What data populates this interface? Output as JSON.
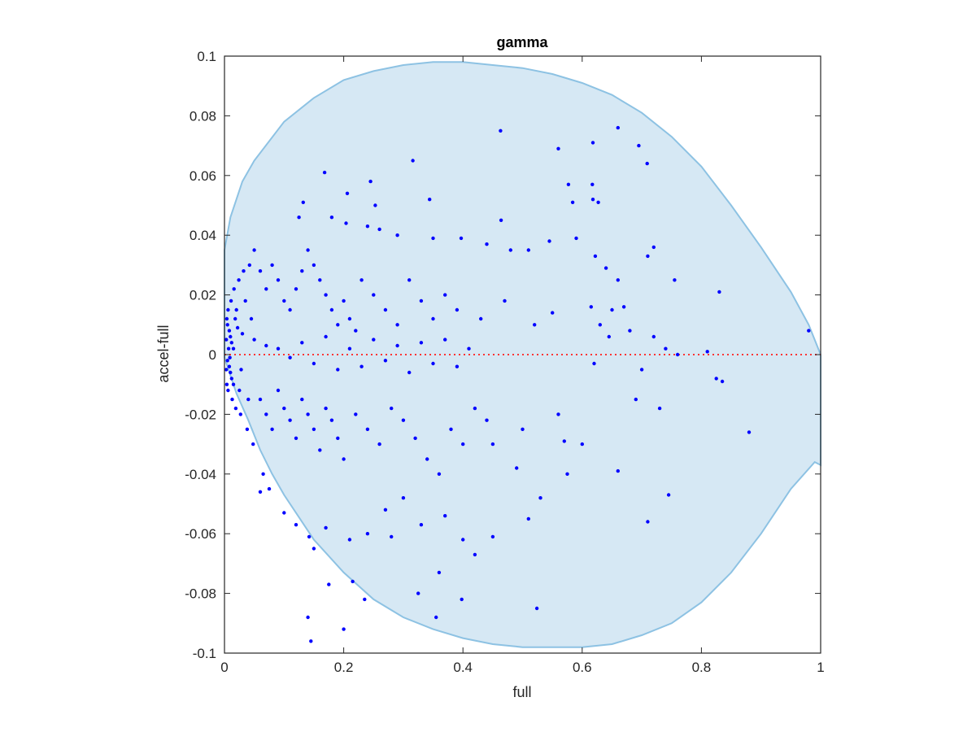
{
  "chart_data": {
    "type": "scatter",
    "title": "gamma",
    "xlabel": "full",
    "ylabel": "accel-full",
    "xlim": [
      0,
      1
    ],
    "ylim": [
      -0.1,
      0.1
    ],
    "grid": false,
    "xticks": [
      0,
      0.2,
      0.4,
      0.6,
      0.8,
      1
    ],
    "xtick_labels": [
      "0",
      "0.2",
      "0.4",
      "0.6",
      "0.8",
      "1"
    ],
    "yticks": [
      -0.1,
      -0.08,
      -0.06,
      -0.04,
      -0.02,
      0,
      0.02,
      0.04,
      0.06,
      0.08,
      0.1
    ],
    "ytick_labels": [
      "-0.1",
      "-0.08",
      "-0.06",
      "-0.04",
      "-0.02",
      "0",
      "0.02",
      "0.04",
      "0.06",
      "0.08",
      "0.1"
    ],
    "colors": {
      "points": "#0000ff",
      "reference_line": "#ff3333",
      "region_fill": "#d6e8f4",
      "region_edge": "#8dc2e3",
      "axes": "#262626"
    },
    "reference_line": {
      "y": 0,
      "style": "dotted"
    },
    "region": {
      "upper": [
        [
          0,
          0.035
        ],
        [
          0.01,
          0.046
        ],
        [
          0.03,
          0.058
        ],
        [
          0.05,
          0.065
        ],
        [
          0.1,
          0.078
        ],
        [
          0.15,
          0.086
        ],
        [
          0.2,
          0.092
        ],
        [
          0.25,
          0.095
        ],
        [
          0.3,
          0.097
        ],
        [
          0.35,
          0.098
        ],
        [
          0.4,
          0.098
        ],
        [
          0.45,
          0.097
        ],
        [
          0.5,
          0.096
        ],
        [
          0.55,
          0.094
        ],
        [
          0.6,
          0.091
        ],
        [
          0.65,
          0.087
        ],
        [
          0.7,
          0.081
        ],
        [
          0.75,
          0.073
        ],
        [
          0.8,
          0.063
        ],
        [
          0.85,
          0.05
        ],
        [
          0.9,
          0.036
        ],
        [
          0.95,
          0.021
        ],
        [
          0.98,
          0.01
        ],
        [
          1,
          0
        ]
      ],
      "lower": [
        [
          0,
          -0.001
        ],
        [
          0.02,
          -0.013
        ],
        [
          0.04,
          -0.022
        ],
        [
          0.06,
          -0.032
        ],
        [
          0.08,
          -0.04
        ],
        [
          0.1,
          -0.047
        ],
        [
          0.15,
          -0.062
        ],
        [
          0.2,
          -0.073
        ],
        [
          0.25,
          -0.082
        ],
        [
          0.3,
          -0.088
        ],
        [
          0.35,
          -0.092
        ],
        [
          0.4,
          -0.095
        ],
        [
          0.45,
          -0.097
        ],
        [
          0.5,
          -0.098
        ],
        [
          0.55,
          -0.098
        ],
        [
          0.6,
          -0.098
        ],
        [
          0.65,
          -0.097
        ],
        [
          0.7,
          -0.094
        ],
        [
          0.75,
          -0.09
        ],
        [
          0.8,
          -0.083
        ],
        [
          0.85,
          -0.073
        ],
        [
          0.9,
          -0.06
        ],
        [
          0.95,
          -0.045
        ],
        [
          0.99,
          -0.036
        ],
        [
          1,
          -0.037
        ]
      ]
    },
    "series": [
      {
        "points": [
          [
            0.463,
            0.075
          ],
          [
            0.66,
            0.076
          ],
          [
            0.618,
            0.071
          ],
          [
            0.695,
            0.07
          ],
          [
            0.709,
            0.064
          ],
          [
            0.56,
            0.069
          ],
          [
            0.316,
            0.065
          ],
          [
            0.168,
            0.061
          ],
          [
            0.245,
            0.058
          ],
          [
            0.577,
            0.057
          ],
          [
            0.617,
            0.057
          ],
          [
            0.618,
            0.052
          ],
          [
            0.627,
            0.051
          ],
          [
            0.253,
            0.05
          ],
          [
            0.344,
            0.052
          ],
          [
            0.584,
            0.051
          ],
          [
            0.464,
            0.045
          ],
          [
            0.206,
            0.054
          ],
          [
            0.132,
            0.051
          ],
          [
            0.125,
            0.046
          ],
          [
            0.18,
            0.046
          ],
          [
            0.204,
            0.044
          ],
          [
            0.24,
            0.043
          ],
          [
            0.26,
            0.042
          ],
          [
            0.29,
            0.04
          ],
          [
            0.35,
            0.039
          ],
          [
            0.397,
            0.039
          ],
          [
            0.44,
            0.037
          ],
          [
            0.48,
            0.035
          ],
          [
            0.51,
            0.035
          ],
          [
            0.545,
            0.038
          ],
          [
            0.59,
            0.039
          ],
          [
            0.622,
            0.033
          ],
          [
            0.64,
            0.029
          ],
          [
            0.66,
            0.025
          ],
          [
            0.71,
            0.033
          ],
          [
            0.72,
            0.036
          ],
          [
            0.755,
            0.025
          ],
          [
            0.83,
            0.021
          ],
          [
            0.98,
            0.008
          ],
          [
            0.81,
            0.001
          ],
          [
            0.76,
            0
          ],
          [
            0.825,
            -0.008
          ],
          [
            0.835,
            -0.009
          ],
          [
            0.73,
            -0.018
          ],
          [
            0.88,
            -0.026
          ],
          [
            0.66,
            -0.039
          ],
          [
            0.745,
            -0.047
          ],
          [
            0.71,
            -0.056
          ],
          [
            0.524,
            -0.085
          ],
          [
            0.398,
            -0.082
          ],
          [
            0.355,
            -0.088
          ],
          [
            0.235,
            -0.082
          ],
          [
            0.2,
            -0.092
          ],
          [
            0.145,
            -0.096
          ],
          [
            0.14,
            -0.088
          ],
          [
            0.175,
            -0.077
          ],
          [
            0.215,
            -0.076
          ],
          [
            0.15,
            -0.065
          ],
          [
            0.142,
            -0.061
          ],
          [
            0.36,
            -0.073
          ],
          [
            0.325,
            -0.08
          ],
          [
            0.42,
            -0.067
          ],
          [
            0.45,
            -0.061
          ],
          [
            0.51,
            -0.055
          ],
          [
            0.4,
            -0.062
          ],
          [
            0.37,
            -0.054
          ],
          [
            0.33,
            -0.057
          ],
          [
            0.28,
            -0.061
          ],
          [
            0.27,
            -0.052
          ],
          [
            0.3,
            -0.048
          ],
          [
            0.24,
            -0.06
          ],
          [
            0.21,
            -0.062
          ],
          [
            0.17,
            -0.058
          ],
          [
            0.12,
            -0.057
          ],
          [
            0.1,
            -0.053
          ],
          [
            0.075,
            -0.045
          ],
          [
            0.06,
            -0.046
          ],
          [
            0.065,
            -0.04
          ],
          [
            0.57,
            -0.029
          ],
          [
            0.6,
            -0.03
          ],
          [
            0.575,
            -0.04
          ],
          [
            0.53,
            -0.048
          ],
          [
            0.49,
            -0.038
          ],
          [
            0.62,
            -0.003
          ],
          [
            0.69,
            -0.015
          ],
          [
            0.7,
            -0.005
          ],
          [
            0.56,
            -0.02
          ],
          [
            0.5,
            -0.025
          ],
          [
            0.45,
            -0.03
          ],
          [
            0.63,
            0.01
          ],
          [
            0.68,
            0.008
          ],
          [
            0.645,
            0.006
          ],
          [
            0.72,
            0.006
          ],
          [
            0.74,
            0.002
          ],
          [
            0.615,
            0.016
          ],
          [
            0.65,
            0.015
          ],
          [
            0.67,
            0.016
          ],
          [
            0.55,
            0.014
          ],
          [
            0.52,
            0.01
          ],
          [
            0.47,
            0.018
          ],
          [
            0.43,
            0.012
          ],
          [
            0.05,
            0.035
          ],
          [
            0.06,
            0.028
          ],
          [
            0.07,
            0.022
          ],
          [
            0.08,
            0.03
          ],
          [
            0.09,
            0.025
          ],
          [
            0.1,
            0.018
          ],
          [
            0.11,
            0.015
          ],
          [
            0.12,
            0.022
          ],
          [
            0.13,
            0.028
          ],
          [
            0.14,
            0.035
          ],
          [
            0.15,
            0.03
          ],
          [
            0.16,
            0.025
          ],
          [
            0.17,
            0.02
          ],
          [
            0.18,
            0.015
          ],
          [
            0.19,
            0.01
          ],
          [
            0.2,
            0.018
          ],
          [
            0.21,
            0.012
          ],
          [
            0.22,
            0.008
          ],
          [
            0.23,
            0.025
          ],
          [
            0.25,
            0.02
          ],
          [
            0.27,
            0.015
          ],
          [
            0.29,
            0.01
          ],
          [
            0.31,
            0.025
          ],
          [
            0.33,
            0.018
          ],
          [
            0.35,
            0.012
          ],
          [
            0.37,
            0.02
          ],
          [
            0.39,
            0.015
          ],
          [
            0.06,
            -0.015
          ],
          [
            0.07,
            -0.02
          ],
          [
            0.08,
            -0.025
          ],
          [
            0.09,
            -0.012
          ],
          [
            0.1,
            -0.018
          ],
          [
            0.11,
            -0.022
          ],
          [
            0.12,
            -0.028
          ],
          [
            0.13,
            -0.015
          ],
          [
            0.14,
            -0.02
          ],
          [
            0.15,
            -0.025
          ],
          [
            0.16,
            -0.032
          ],
          [
            0.17,
            -0.018
          ],
          [
            0.18,
            -0.022
          ],
          [
            0.19,
            -0.028
          ],
          [
            0.2,
            -0.035
          ],
          [
            0.22,
            -0.02
          ],
          [
            0.24,
            -0.025
          ],
          [
            0.26,
            -0.03
          ],
          [
            0.28,
            -0.018
          ],
          [
            0.3,
            -0.022
          ],
          [
            0.32,
            -0.028
          ],
          [
            0.34,
            -0.035
          ],
          [
            0.36,
            -0.04
          ],
          [
            0.38,
            -0.025
          ],
          [
            0.4,
            -0.03
          ],
          [
            0.42,
            -0.018
          ],
          [
            0.44,
            -0.022
          ],
          [
            0.05,
            0.005
          ],
          [
            0.07,
            0.003
          ],
          [
            0.09,
            0.002
          ],
          [
            0.11,
            -0.001
          ],
          [
            0.13,
            0.004
          ],
          [
            0.15,
            -0.003
          ],
          [
            0.17,
            0.006
          ],
          [
            0.19,
            -0.005
          ],
          [
            0.21,
            0.002
          ],
          [
            0.23,
            -0.004
          ],
          [
            0.25,
            0.005
          ],
          [
            0.27,
            -0.002
          ],
          [
            0.29,
            0.003
          ],
          [
            0.31,
            -0.006
          ],
          [
            0.33,
            0.004
          ],
          [
            0.35,
            -0.003
          ],
          [
            0.37,
            0.005
          ],
          [
            0.39,
            -0.004
          ],
          [
            0.41,
            0.002
          ],
          [
            0.005,
            0.01
          ],
          [
            0.008,
            0.008
          ],
          [
            0.01,
            0.006
          ],
          [
            0.012,
            0.004
          ],
          [
            0.015,
            0.002
          ],
          [
            0.005,
            -0.002
          ],
          [
            0.008,
            -0.004
          ],
          [
            0.01,
            -0.006
          ],
          [
            0.012,
            -0.008
          ],
          [
            0.015,
            -0.01
          ],
          [
            0.018,
            0.012
          ],
          [
            0.02,
            0.015
          ],
          [
            0.022,
            0.009
          ],
          [
            0.025,
            -0.012
          ],
          [
            0.028,
            -0.005
          ],
          [
            0.03,
            0.007
          ],
          [
            0.035,
            0.018
          ],
          [
            0.04,
            -0.015
          ],
          [
            0.045,
            0.012
          ],
          [
            0.003,
            0.005
          ],
          [
            0.003,
            -0.005
          ],
          [
            0.004,
            0.012
          ],
          [
            0.004,
            -0.01
          ],
          [
            0.006,
            0.015
          ],
          [
            0.006,
            -0.012
          ],
          [
            0.007,
            0.002
          ],
          [
            0.009,
            -0.001
          ],
          [
            0.011,
            0.018
          ],
          [
            0.013,
            -0.015
          ],
          [
            0.016,
            0.022
          ],
          [
            0.019,
            -0.018
          ],
          [
            0.024,
            0.025
          ],
          [
            0.027,
            -0.02
          ],
          [
            0.032,
            0.028
          ],
          [
            0.038,
            -0.025
          ],
          [
            0.042,
            0.03
          ],
          [
            0.048,
            -0.03
          ]
        ]
      }
    ]
  }
}
